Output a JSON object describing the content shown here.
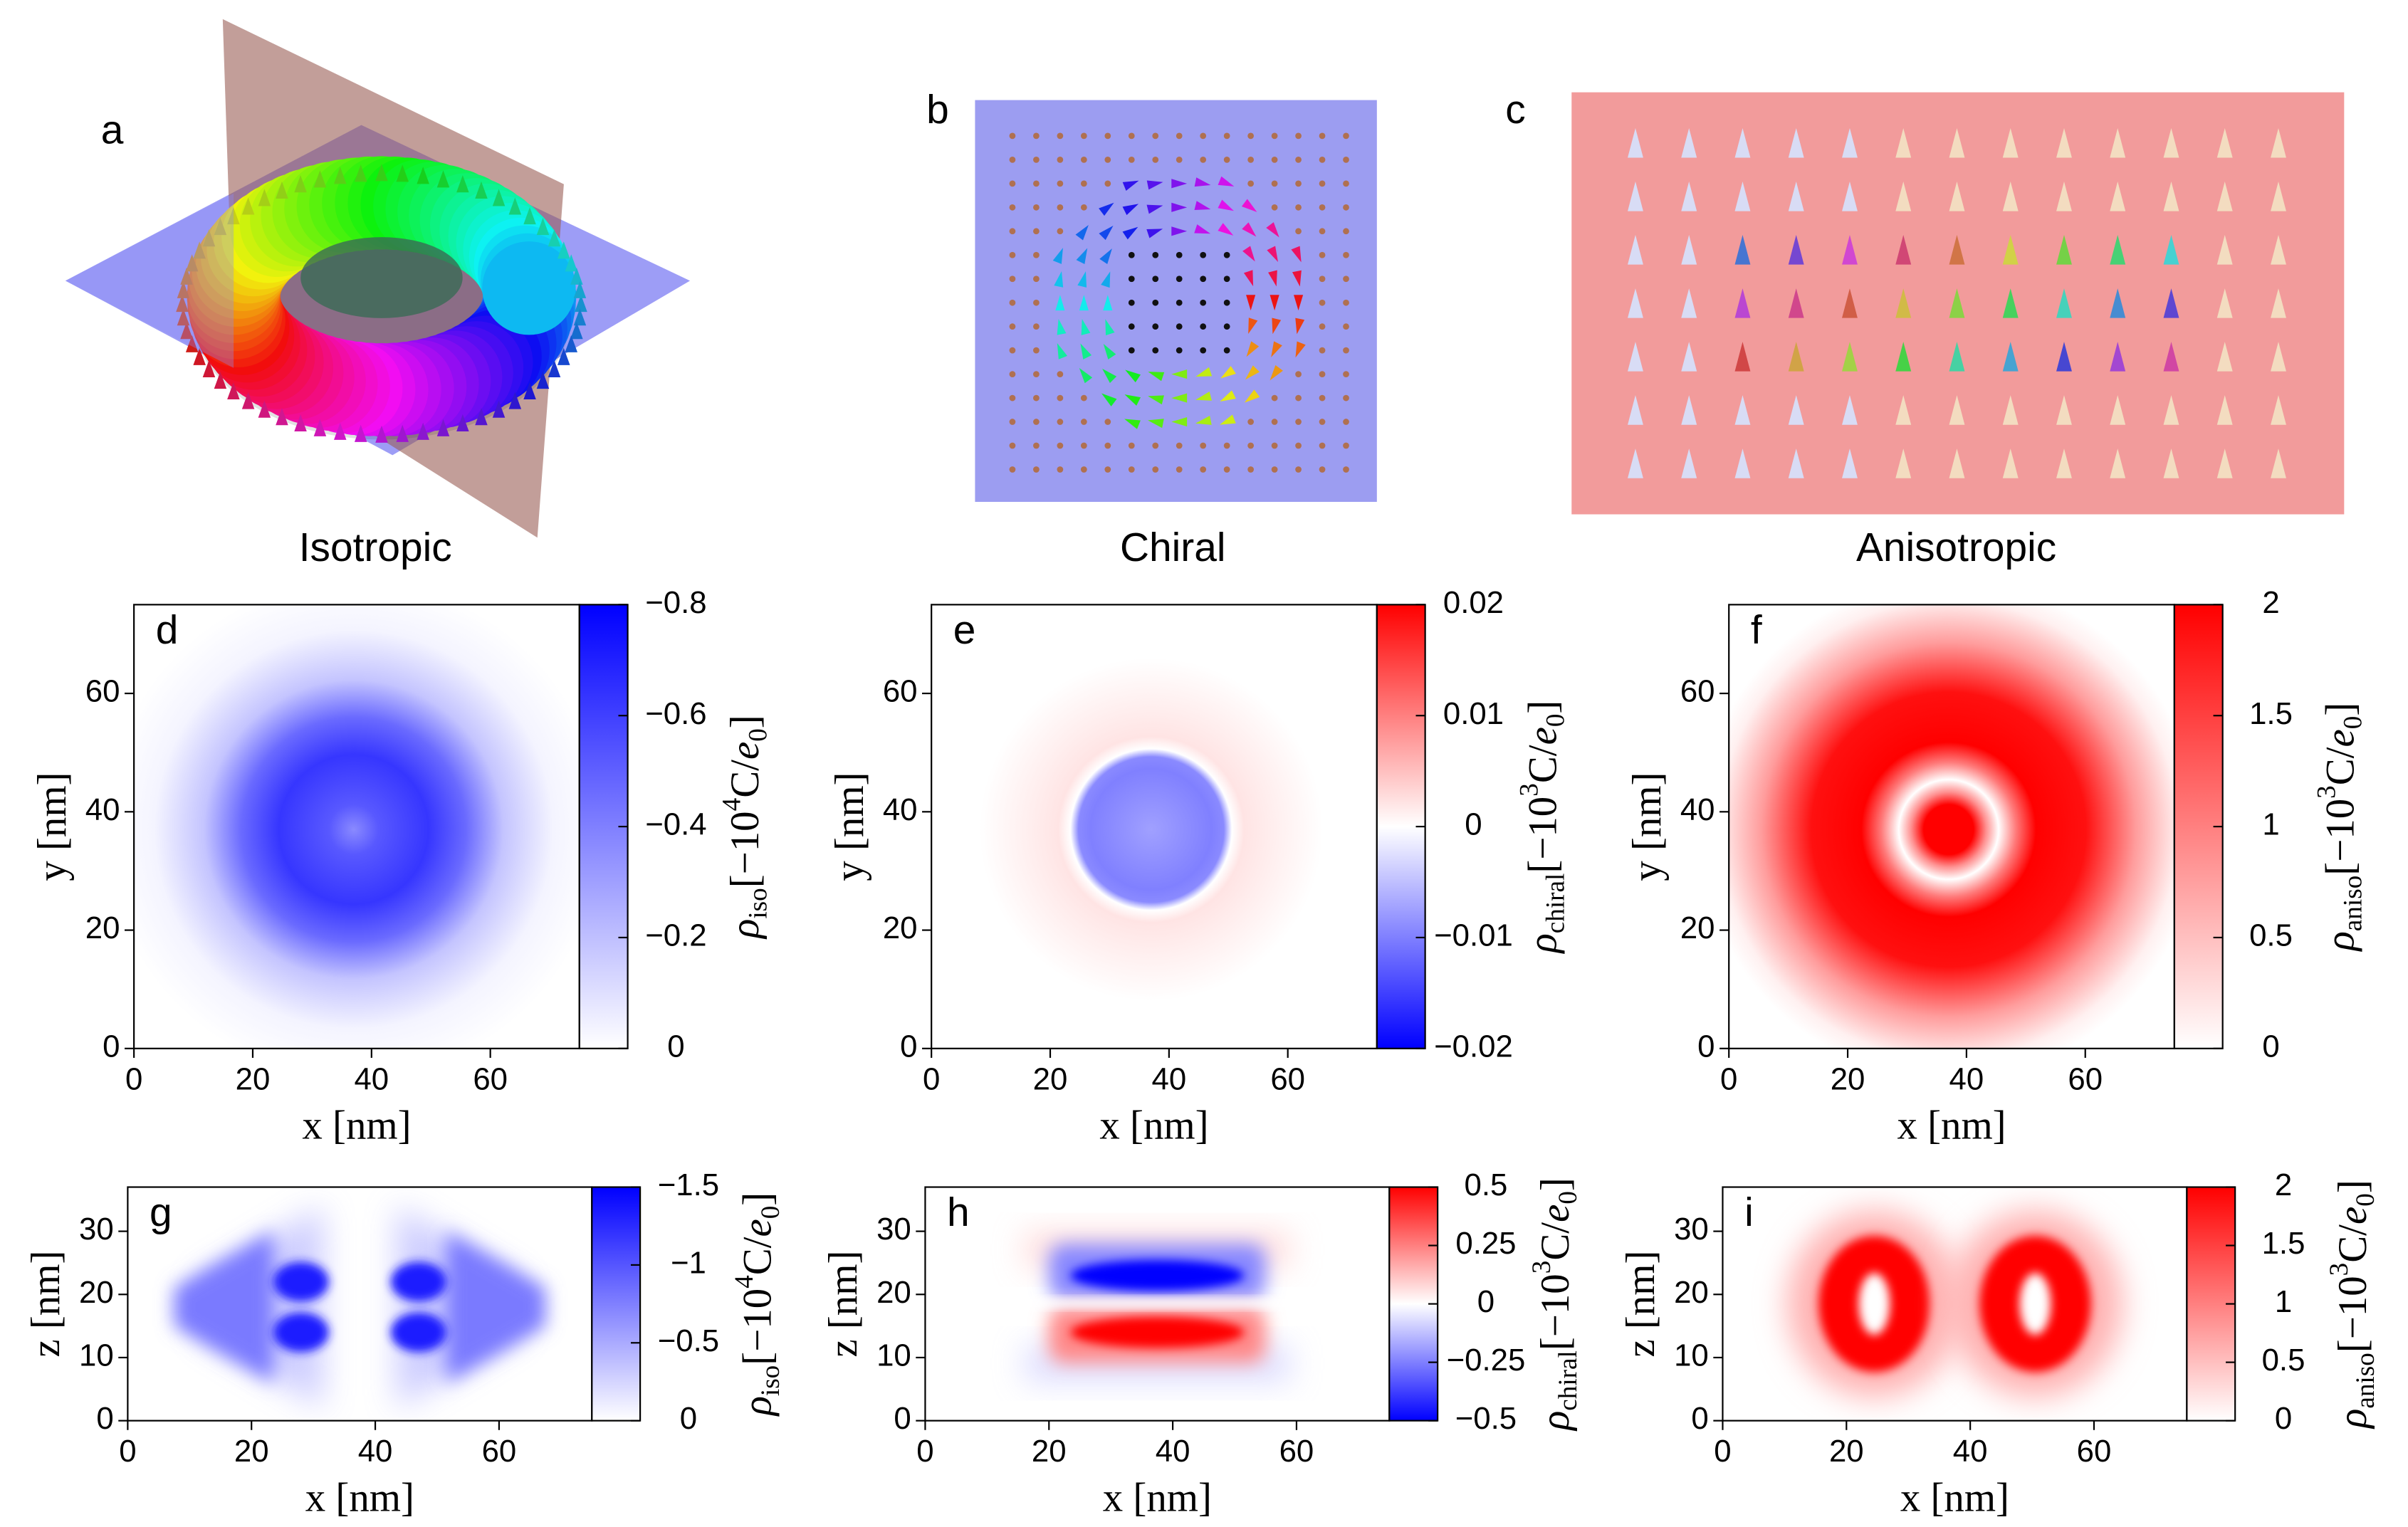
{
  "panels": [
    {
      "label": "a",
      "caption": "Isotropic"
    },
    {
      "label": "b",
      "caption": "Chiral"
    },
    {
      "label": "c",
      "caption": "Anisotropic"
    }
  ],
  "chart_data": [
    {
      "type": "heatmap",
      "label": "d",
      "xlabel": "x [nm]",
      "ylabel": "y [nm]",
      "xlim": [
        0,
        75
      ],
      "ylim": [
        0,
        75
      ],
      "xticks": [
        0,
        20,
        40,
        60
      ],
      "yticks": [
        0,
        20,
        40,
        60
      ],
      "colorbar": {
        "lim": [
          0,
          -0.8
        ],
        "colors": [
          "#ffffff",
          "#0000ff"
        ],
        "ticks": [
          0,
          {
            "value": -0.2,
            "label": "−0.2"
          },
          {
            "value": -0.4,
            "label": "−0.4"
          },
          {
            "value": -0.6,
            "label": "−0.6"
          },
          {
            "value": -0.8,
            "label": "−0.8"
          }
        ],
        "label": {
          "symbol": "ρ",
          "symbol_sub": "iso",
          "unit_pre": "[−10",
          "unit_exp": "4",
          "unit_mid": "C/",
          "unit_var": "e",
          "unit_var_sub": "0",
          "unit_end": "]"
        }
      }
    },
    {
      "type": "heatmap",
      "label": "e",
      "xlabel": "x [nm]",
      "ylabel": "y [nm]",
      "xlim": [
        0,
        75
      ],
      "ylim": [
        0,
        75
      ],
      "xticks": [
        0,
        20,
        40,
        60
      ],
      "yticks": [
        0,
        20,
        40,
        60
      ],
      "colorbar": {
        "lim": [
          -0.02,
          0.02
        ],
        "colors": [
          "#0000ff",
          "#ffffff",
          "#ff0000"
        ],
        "ticks": [
          {
            "value": -0.02,
            "label": "−0.02"
          },
          {
            "value": -0.01,
            "label": "−0.01"
          },
          0,
          0.01,
          0.02
        ],
        "label": {
          "symbol": "ρ",
          "symbol_sub": "chiral",
          "unit_pre": "[−10",
          "unit_exp": "3",
          "unit_mid": "C/",
          "unit_var": "e",
          "unit_var_sub": "0",
          "unit_end": "]"
        }
      }
    },
    {
      "type": "heatmap",
      "label": "f",
      "xlabel": "x [nm]",
      "ylabel": "y [nm]",
      "xlim": [
        0,
        75
      ],
      "ylim": [
        0,
        75
      ],
      "xticks": [
        0,
        20,
        40,
        60
      ],
      "yticks": [
        0,
        20,
        40,
        60
      ],
      "colorbar": {
        "lim": [
          0,
          2
        ],
        "colors": [
          "#ffffff",
          "#ff0000"
        ],
        "ticks": [
          0,
          0.5,
          1,
          1.5,
          2
        ],
        "label": {
          "symbol": "ρ",
          "symbol_sub": "aniso",
          "unit_pre": "[−10",
          "unit_exp": "3",
          "unit_mid": "C/",
          "unit_var": "e",
          "unit_var_sub": "0",
          "unit_end": "]"
        }
      }
    },
    {
      "type": "heatmap",
      "label": "g",
      "xlabel": "x [nm]",
      "ylabel": "z [nm]",
      "xlim": [
        0,
        75
      ],
      "ylim": [
        0,
        37
      ],
      "xticks": [
        0,
        20,
        40,
        60
      ],
      "yticks": [
        0,
        10,
        20,
        30
      ],
      "colorbar": {
        "lim": [
          0,
          -1.5
        ],
        "colors": [
          "#ffffff",
          "#0000ff"
        ],
        "ticks": [
          0,
          {
            "value": -0.5,
            "label": "−0.5"
          },
          {
            "value": -1,
            "label": "−1"
          },
          {
            "value": -1.5,
            "label": "−1.5"
          }
        ],
        "label": {
          "symbol": "ρ",
          "symbol_sub": "iso",
          "unit_pre": "[−10",
          "unit_exp": "4",
          "unit_mid": "C/",
          "unit_var": "e",
          "unit_var_sub": "0",
          "unit_end": "]"
        }
      }
    },
    {
      "type": "heatmap",
      "label": "h",
      "xlabel": "x [nm]",
      "ylabel": "z [nm]",
      "xlim": [
        0,
        75
      ],
      "ylim": [
        0,
        37
      ],
      "xticks": [
        0,
        20,
        40,
        60
      ],
      "yticks": [
        0,
        10,
        20,
        30
      ],
      "colorbar": {
        "lim": [
          -0.5,
          0.5
        ],
        "colors": [
          "#0000ff",
          "#ffffff",
          "#ff0000"
        ],
        "ticks": [
          {
            "value": -0.5,
            "label": "−0.5"
          },
          {
            "value": -0.25,
            "label": "−0.25"
          },
          0,
          0.25,
          0.5
        ],
        "label": {
          "symbol": "ρ",
          "symbol_sub": "chiral",
          "unit_pre": "[−10",
          "unit_exp": "3",
          "unit_mid": "C/",
          "unit_var": "e",
          "unit_var_sub": "0",
          "unit_end": "]"
        }
      }
    },
    {
      "type": "heatmap",
      "label": "i",
      "xlabel": "x [nm]",
      "ylabel": "z [nm]",
      "xlim": [
        0,
        75
      ],
      "ylim": [
        0,
        37
      ],
      "xticks": [
        0,
        20,
        40,
        60
      ],
      "yticks": [
        0,
        10,
        20,
        30
      ],
      "colorbar": {
        "lim": [
          0,
          2
        ],
        "colors": [
          "#ffffff",
          "#ff0000"
        ],
        "ticks": [
          0,
          0.5,
          1,
          1.5,
          2
        ],
        "label": {
          "symbol": "ρ",
          "symbol_sub": "aniso",
          "unit_pre": "[−10",
          "unit_exp": "3",
          "unit_mid": "C/",
          "unit_var": "e",
          "unit_var_sub": "0",
          "unit_end": "]"
        }
      }
    }
  ]
}
